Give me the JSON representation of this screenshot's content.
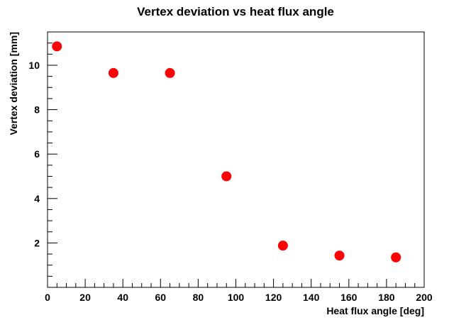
{
  "chart_data": {
    "type": "scatter",
    "title": "Vertex deviation vs heat flux angle",
    "xlabel": "Heat flux angle [deg]",
    "ylabel": "Vertex deviation [mm]",
    "xlim": [
      0,
      200
    ],
    "ylim": [
      0,
      11.5
    ],
    "xticks": [
      0,
      20,
      40,
      60,
      80,
      100,
      120,
      140,
      160,
      180,
      200
    ],
    "yticks": [
      2,
      4,
      6,
      8,
      10
    ],
    "x": [
      5,
      35,
      65,
      95,
      125,
      155,
      185
    ],
    "y": [
      10.85,
      9.65,
      9.65,
      5.0,
      1.88,
      1.43,
      1.35
    ],
    "marker_color": "#ff0000",
    "grid": false,
    "legend": "none"
  }
}
